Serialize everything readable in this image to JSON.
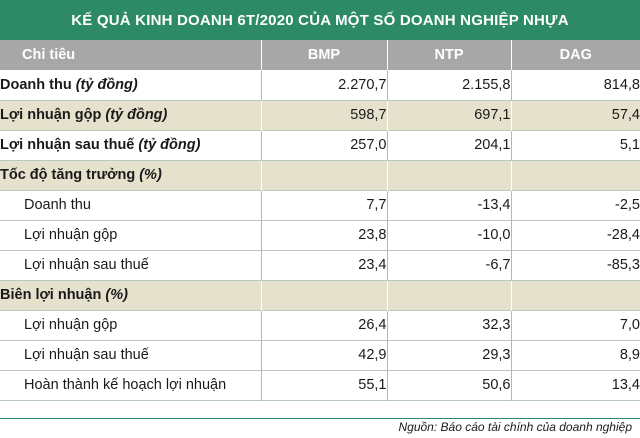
{
  "title": "KẾ QUẢ KINH DOANH 6T/2020 CỦA MỘT SỐ DOANH NGHIỆP NHỰA",
  "header": {
    "label": "Chỉ tiêu",
    "cols": [
      "BMP",
      "NTP",
      "DAG"
    ]
  },
  "rows": [
    {
      "label": "Doanh thu",
      "unit": "(tỷ đồng)",
      "values": [
        "2.270,7",
        "2.155,8",
        "814,8"
      ]
    },
    {
      "label": "Lợi nhuận gộp",
      "unit": "(tỷ đồng)",
      "values": [
        "598,7",
        "697,1",
        "57,4"
      ]
    },
    {
      "label": "Lợi nhuận sau thuế",
      "unit": "(tỷ đồng)",
      "values": [
        "257,0",
        "204,1",
        "5,1"
      ]
    },
    {
      "label": "Tốc độ tăng trưởng",
      "unit": "(%)",
      "values": [
        "",
        "",
        ""
      ]
    },
    {
      "label": "Doanh thu",
      "unit": "",
      "values": [
        "7,7",
        "-13,4",
        "-2,5"
      ]
    },
    {
      "label": "Lợi nhuận gộp",
      "unit": "",
      "values": [
        "23,8",
        "-10,0",
        "-28,4"
      ]
    },
    {
      "label": "Lợi nhuận sau thuế",
      "unit": "",
      "values": [
        "23,4",
        "-6,7",
        "-85,3"
      ]
    },
    {
      "label": "Biên lợi nhuận",
      "unit": "(%)",
      "values": [
        "",
        "",
        ""
      ]
    },
    {
      "label": "Lợi nhuận gộp",
      "unit": "",
      "values": [
        "26,4",
        "32,3",
        "7,0"
      ]
    },
    {
      "label": "Lợi nhuận sau thuế",
      "unit": "",
      "values": [
        "42,9",
        "29,3",
        "8,9"
      ]
    },
    {
      "label": "Hoàn thành kế hoạch lợi nhuận",
      "unit": "",
      "values": [
        "55,1",
        "50,6",
        "13,4"
      ]
    }
  ],
  "source": "Nguồn: Báo cáo tài chính của doanh nghiệp",
  "colors": {
    "title_bg": "#2c8b66",
    "header_bg": "#a7a7a7",
    "tint_row": "#e6e1cd"
  }
}
